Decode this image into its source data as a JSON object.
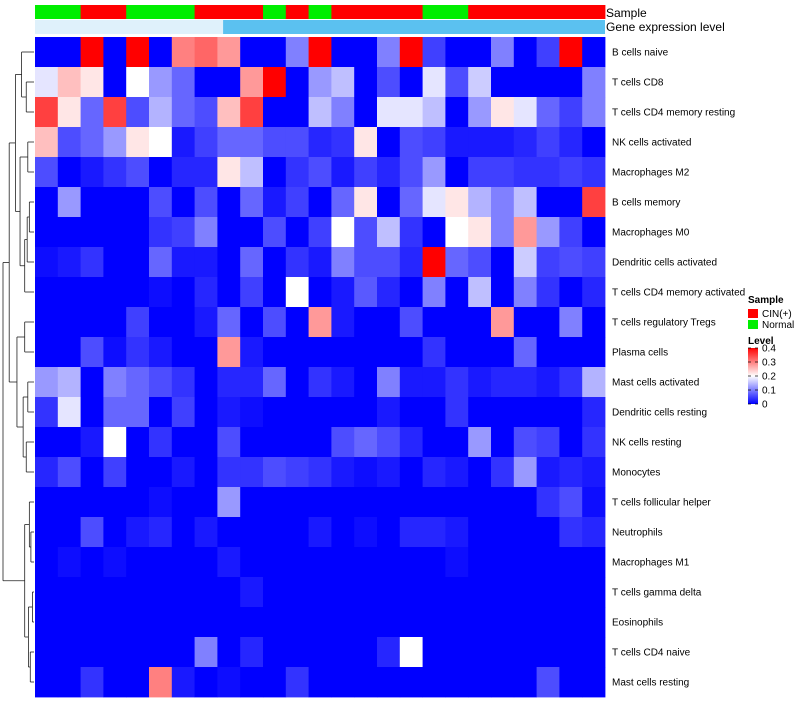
{
  "chart_data": {
    "type": "heatmap",
    "title": "",
    "n_samples": 25,
    "annotations": {
      "sample_label": "Sample",
      "expression_label": "Gene expression level",
      "sample_groups": [
        "N",
        "N",
        "C",
        "C",
        "N",
        "N",
        "N",
        "C",
        "C",
        "C",
        "N",
        "C",
        "N",
        "C",
        "C",
        "C",
        "C",
        "N",
        "N",
        "C",
        "C",
        "C",
        "C",
        "C",
        "C"
      ]
    },
    "rows": [
      "B cells naive",
      "T cells CD8",
      "T cells CD4 memory resting",
      "NK cells activated",
      "Macrophages M2",
      "B cells memory",
      "Macrophages M0",
      "Dendritic cells activated",
      "T cells CD4 memory activated",
      "T cells regulatory  Tregs",
      "Plasma cells",
      "Mast cells activated",
      "Dendritic cells resting",
      "NK cells resting",
      "Monocytes",
      "T cells follicular helper",
      "Neutrophils",
      "Macrophages M1",
      "T cells gamma delta",
      "Eosinophils",
      "T cells CD4 naive",
      "Mast cells resting"
    ],
    "values": [
      [
        0.0,
        0.0,
        0.4,
        0.0,
        0.4,
        0.0,
        0.3,
        0.32,
        0.28,
        0.0,
        0.0,
        0.1,
        0.4,
        0.0,
        0.0,
        0.1,
        0.4,
        0.05,
        0.0,
        0.0,
        0.1,
        0.0,
        0.05,
        0.4,
        0.0
      ],
      [
        0.18,
        0.25,
        0.22,
        0.0,
        0.2,
        0.12,
        0.08,
        0.0,
        0.0,
        0.28,
        0.4,
        0.0,
        0.12,
        0.15,
        0.0,
        0.06,
        0.0,
        0.18,
        0.06,
        0.16,
        0.0,
        0.0,
        0.0,
        0.0,
        0.1
      ],
      [
        0.35,
        0.22,
        0.08,
        0.35,
        0.06,
        0.14,
        0.08,
        0.06,
        0.25,
        0.35,
        0.0,
        0.0,
        0.15,
        0.1,
        0.0,
        0.18,
        0.18,
        0.15,
        0.0,
        0.12,
        0.22,
        0.18,
        0.08,
        0.05,
        0.1
      ],
      [
        0.25,
        0.06,
        0.08,
        0.12,
        0.22,
        0.2,
        0.02,
        0.05,
        0.08,
        0.08,
        0.06,
        0.06,
        0.03,
        0.04,
        0.22,
        0.0,
        0.06,
        0.05,
        0.02,
        0.02,
        0.02,
        0.03,
        0.05,
        0.03,
        0.0
      ],
      [
        0.06,
        0.0,
        0.02,
        0.04,
        0.06,
        0.0,
        0.03,
        0.03,
        0.22,
        0.15,
        0.0,
        0.04,
        0.06,
        0.02,
        0.05,
        0.03,
        0.06,
        0.12,
        0.0,
        0.05,
        0.05,
        0.04,
        0.04,
        0.05,
        0.04
      ],
      [
        0.0,
        0.12,
        0.0,
        0.0,
        0.0,
        0.06,
        0.0,
        0.06,
        0.0,
        0.08,
        0.02,
        0.05,
        0.0,
        0.08,
        0.22,
        0.0,
        0.08,
        0.18,
        0.22,
        0.14,
        0.1,
        0.15,
        0.0,
        0.0,
        0.35
      ],
      [
        0.0,
        0.0,
        0.0,
        0.0,
        0.0,
        0.04,
        0.05,
        0.1,
        0.0,
        0.0,
        0.06,
        0.0,
        0.05,
        0.2,
        0.06,
        0.15,
        0.04,
        0.0,
        0.2,
        0.22,
        0.1,
        0.28,
        0.12,
        0.05,
        0.0
      ],
      [
        0.01,
        0.02,
        0.04,
        0.0,
        0.0,
        0.08,
        0.02,
        0.02,
        0.0,
        0.08,
        0.0,
        0.04,
        0.02,
        0.1,
        0.06,
        0.06,
        0.03,
        0.4,
        0.08,
        0.06,
        0.0,
        0.16,
        0.05,
        0.06,
        0.05
      ],
      [
        0.0,
        0.0,
        0.0,
        0.0,
        0.0,
        0.01,
        0.0,
        0.03,
        0.0,
        0.05,
        0.0,
        0.2,
        0.0,
        0.02,
        0.07,
        0.03,
        0.0,
        0.1,
        0.0,
        0.15,
        0.0,
        0.1,
        0.04,
        0.0,
        0.03
      ],
      [
        0.0,
        0.0,
        0.0,
        0.0,
        0.05,
        0.0,
        0.0,
        0.02,
        0.08,
        0.0,
        0.06,
        0.0,
        0.28,
        0.02,
        0.0,
        0.0,
        0.06,
        0.0,
        0.0,
        0.0,
        0.28,
        0.0,
        0.0,
        0.1,
        0.0
      ],
      [
        0.0,
        0.0,
        0.06,
        0.01,
        0.04,
        0.02,
        0.0,
        0.0,
        0.28,
        0.02,
        0.0,
        0.0,
        0.0,
        0.0,
        0.0,
        0.0,
        0.0,
        0.04,
        0.0,
        0.0,
        0.0,
        0.08,
        0.0,
        0.0,
        0.0
      ],
      [
        0.12,
        0.14,
        0.0,
        0.1,
        0.08,
        0.06,
        0.04,
        0.0,
        0.03,
        0.03,
        0.08,
        0.0,
        0.04,
        0.02,
        0.0,
        0.1,
        0.02,
        0.02,
        0.04,
        0.02,
        0.03,
        0.03,
        0.02,
        0.04,
        0.14
      ],
      [
        0.04,
        0.18,
        0.0,
        0.08,
        0.08,
        0.0,
        0.05,
        0.0,
        0.02,
        0.01,
        0.0,
        0.0,
        0.0,
        0.0,
        0.0,
        0.02,
        0.0,
        0.0,
        0.04,
        0.0,
        0.0,
        0.0,
        0.0,
        0.0,
        0.03
      ],
      [
        0.0,
        0.0,
        0.02,
        0.2,
        0.0,
        0.04,
        0.0,
        0.0,
        0.06,
        0.0,
        0.0,
        0.0,
        0.0,
        0.06,
        0.08,
        0.06,
        0.03,
        0.0,
        0.0,
        0.12,
        0.0,
        0.06,
        0.05,
        0.0,
        0.04
      ],
      [
        0.03,
        0.06,
        0.0,
        0.05,
        0.0,
        0.0,
        0.02,
        0.0,
        0.04,
        0.04,
        0.06,
        0.05,
        0.04,
        0.02,
        0.01,
        0.02,
        0.0,
        0.03,
        0.02,
        0.0,
        0.04,
        0.12,
        0.02,
        0.03,
        0.02
      ],
      [
        0.0,
        0.0,
        0.0,
        0.0,
        0.0,
        0.01,
        0.0,
        0.0,
        0.12,
        0.0,
        0.0,
        0.0,
        0.0,
        0.0,
        0.0,
        0.0,
        0.0,
        0.0,
        0.0,
        0.0,
        0.0,
        0.0,
        0.04,
        0.06,
        0.01
      ],
      [
        0.0,
        0.0,
        0.06,
        0.0,
        0.02,
        0.03,
        0.0,
        0.02,
        0.0,
        0.0,
        0.0,
        0.0,
        0.02,
        0.0,
        0.01,
        0.0,
        0.03,
        0.03,
        0.02,
        0.0,
        0.0,
        0.0,
        0.0,
        0.04,
        0.03
      ],
      [
        0.0,
        0.01,
        0.0,
        0.01,
        0.0,
        0.0,
        0.0,
        0.0,
        0.02,
        0.0,
        0.0,
        0.0,
        0.0,
        0.0,
        0.0,
        0.0,
        0.0,
        0.0,
        0.01,
        0.0,
        0.0,
        0.0,
        0.0,
        0.0,
        0.0
      ],
      [
        0.0,
        0.0,
        0.0,
        0.0,
        0.0,
        0.0,
        0.0,
        0.0,
        0.0,
        0.02,
        0.0,
        0.0,
        0.0,
        0.0,
        0.0,
        0.0,
        0.0,
        0.0,
        0.0,
        0.0,
        0.0,
        0.0,
        0.0,
        0.0,
        0.0
      ],
      [
        0.0,
        0.0,
        0.0,
        0.0,
        0.0,
        0.0,
        0.0,
        0.0,
        0.0,
        0.0,
        0.0,
        0.0,
        0.0,
        0.0,
        0.0,
        0.0,
        0.0,
        0.0,
        0.0,
        0.0,
        0.0,
        0.0,
        0.0,
        0.0,
        0.0
      ],
      [
        0.0,
        0.0,
        0.0,
        0.0,
        0.0,
        0.0,
        0.0,
        0.1,
        0.0,
        0.03,
        0.0,
        0.0,
        0.0,
        0.0,
        0.0,
        0.03,
        0.2,
        0.0,
        0.0,
        0.0,
        0.0,
        0.0,
        0.0,
        0.0,
        0.0
      ],
      [
        0.0,
        0.0,
        0.04,
        0.0,
        0.0,
        0.3,
        0.02,
        0.0,
        0.01,
        0.0,
        0.0,
        0.04,
        0.0,
        0.0,
        0.0,
        0.0,
        0.0,
        0.0,
        0.0,
        0.0,
        0.0,
        0.0,
        0.06,
        0.0,
        0.0
      ]
    ],
    "legend": {
      "sample_title": "Sample",
      "groups": [
        {
          "key": "C",
          "label": "CIN(+)",
          "color": "#ff0000"
        },
        {
          "key": "N",
          "label": "Normal",
          "color": "#00ee00"
        }
      ],
      "level_title": "Level",
      "level_ticks": [
        0.4,
        0.3,
        0.2,
        0.1,
        0
      ],
      "level_range": [
        0,
        0.4
      ]
    },
    "colors": {
      "low": "#0000ff",
      "mid": "#ffffff",
      "high": "#ff0000",
      "expression_bar": "#5bc1f0"
    }
  }
}
